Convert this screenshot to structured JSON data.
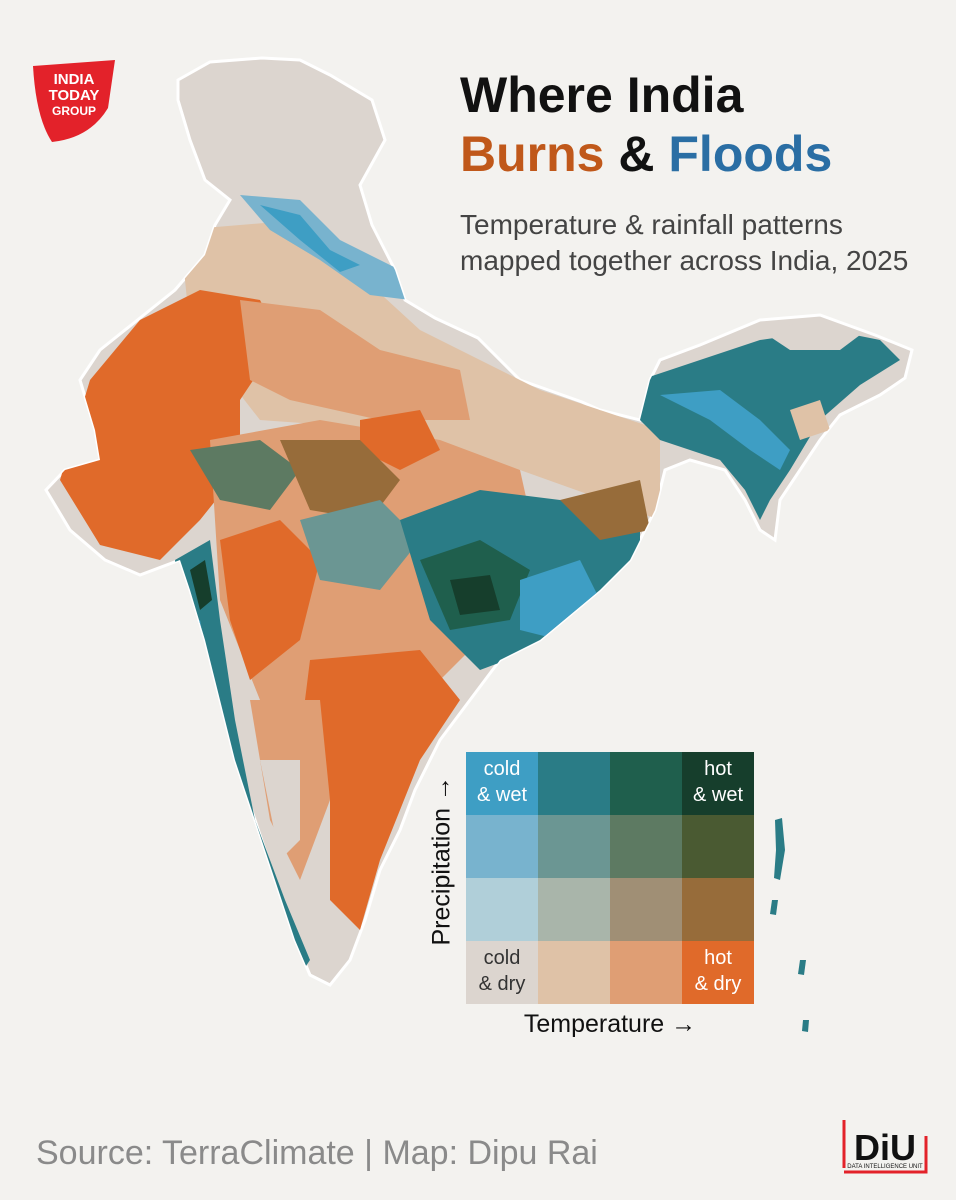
{
  "brand": {
    "logo_text": [
      "INDIA",
      "TODAY",
      "GROUP"
    ],
    "logo_color": "#e3222a"
  },
  "title": {
    "line1": "Where India",
    "word_hot": "Burns",
    "amp": "&",
    "word_wet": "Floods"
  },
  "subtitle": "Temperature & rainfall patterns mapped together across India, 2025",
  "legend": {
    "x_axis": "Temperature →",
    "y_axis": "Precipitation →",
    "grid_rows_top_to_bottom": [
      [
        "#3e9ec4",
        "#2a7c86",
        "#1f5f4d",
        "#163e2c"
      ],
      [
        "#78b3ce",
        "#6b9693",
        "#5d7a62",
        "#4a5a32"
      ],
      [
        "#b0cfd9",
        "#a9b5aa",
        "#a08f75",
        "#976c3a"
      ],
      [
        "#dcd5cf",
        "#dfc2a7",
        "#df9e74",
        "#e06a2a"
      ]
    ],
    "labels": {
      "cold_wet": [
        "cold",
        "& wet"
      ],
      "hot_wet": [
        "hot",
        "& wet"
      ],
      "cold_dry": [
        "cold",
        "& dry"
      ],
      "hot_dry": [
        "hot",
        "& dry"
      ]
    }
  },
  "footer": {
    "source": "Source: TerraClimate | Map: Dipu Rai"
  },
  "diu_logo": {
    "mark": "DiU",
    "caption": "DATA INTELLIGENCE UNIT",
    "accent": "#e3222a"
  },
  "map_colors": {
    "cold_dry": "#dcd5cf",
    "cool_dry": "#dfc2a7",
    "warm_dry": "#df9e74",
    "hot_dry": "#e06a2a",
    "cold_mid": "#b0cfd9",
    "cold_wet": "#3e9ec4",
    "mid_wet": "#2a7c86",
    "warm_wet": "#1f5f4d",
    "hot_wet": "#163e2c",
    "hot_mid": "#976c3a",
    "warm_mid": "#5d7a62",
    "teal_mid": "#6b9693"
  }
}
